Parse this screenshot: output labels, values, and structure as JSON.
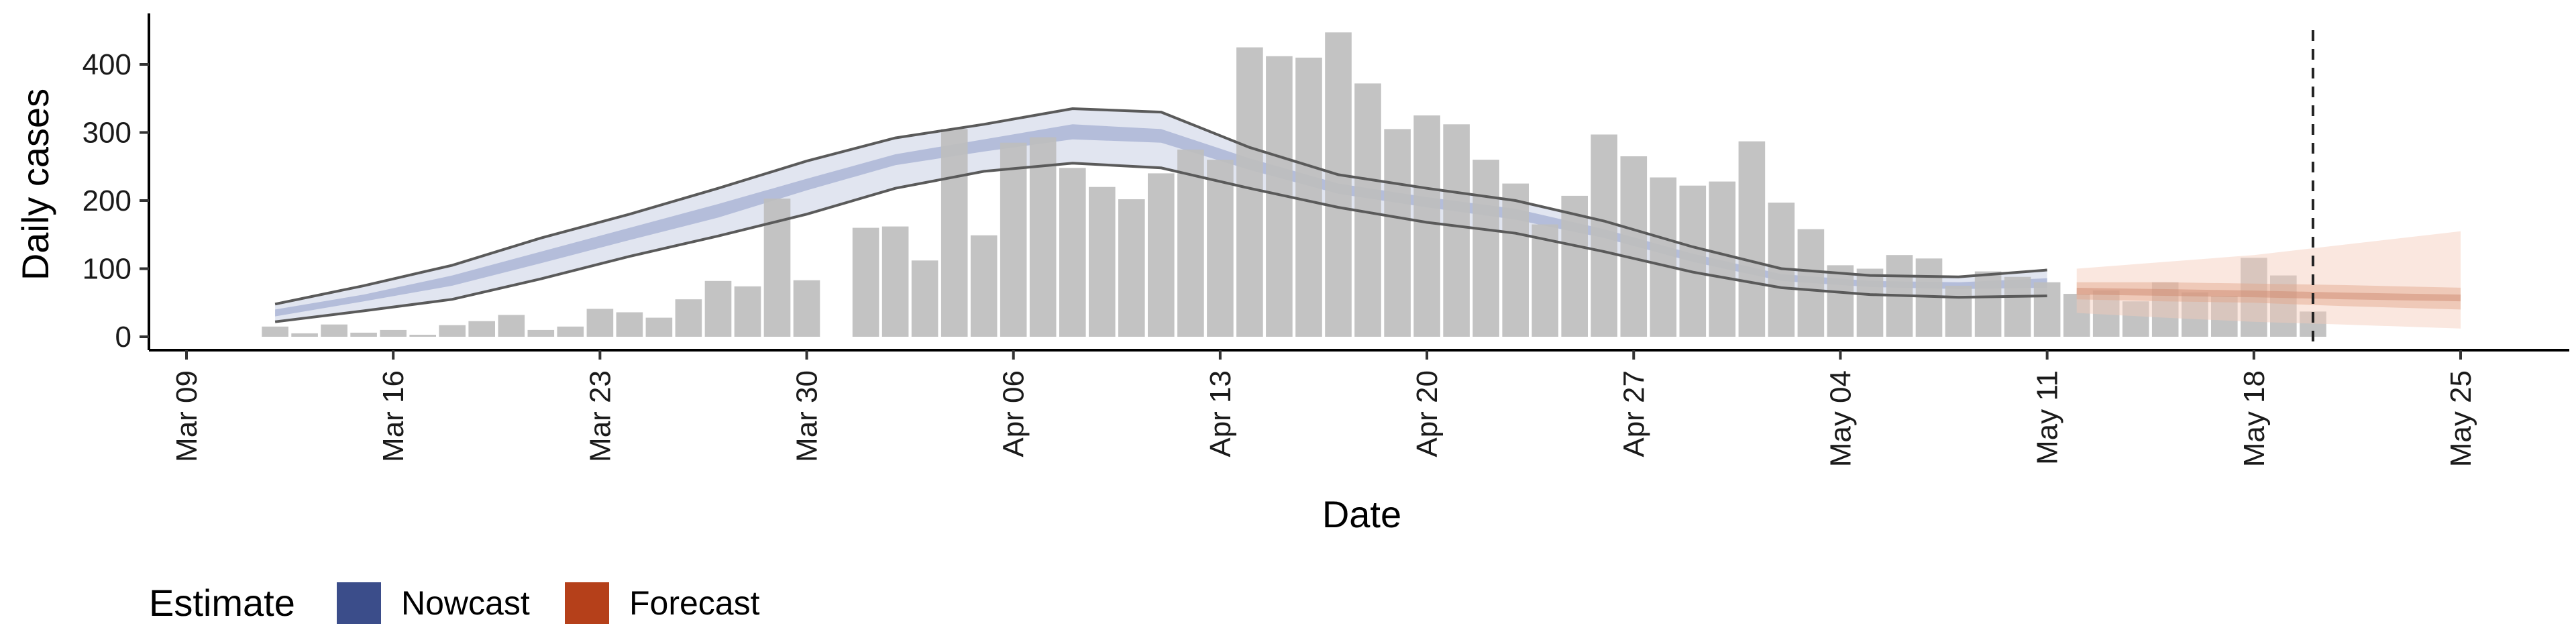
{
  "chart_data": {
    "type": "bar",
    "title": "",
    "xlabel": "Date",
    "ylabel": "Daily cases",
    "ylim": [
      0,
      450
    ],
    "y_ticks": [
      0,
      100,
      200,
      300,
      400
    ],
    "x_range": [
      "2020-03-09",
      "2020-05-25"
    ],
    "x_ticks": [
      {
        "date": "2020-03-09",
        "label": "Mar 09"
      },
      {
        "date": "2020-03-16",
        "label": "Mar 16"
      },
      {
        "date": "2020-03-23",
        "label": "Mar 23"
      },
      {
        "date": "2020-03-30",
        "label": "Mar 30"
      },
      {
        "date": "2020-04-06",
        "label": "Apr 06"
      },
      {
        "date": "2020-04-13",
        "label": "Apr 13"
      },
      {
        "date": "2020-04-20",
        "label": "Apr 20"
      },
      {
        "date": "2020-04-27",
        "label": "Apr 27"
      },
      {
        "date": "2020-05-04",
        "label": "May 04"
      },
      {
        "date": "2020-05-11",
        "label": "May 11"
      },
      {
        "date": "2020-05-18",
        "label": "May 18"
      },
      {
        "date": "2020-05-25",
        "label": "May 25"
      }
    ],
    "grid": false,
    "cases": {
      "start_date": "2020-03-12",
      "color": "#bebebe",
      "values": [
        15,
        5,
        18,
        6,
        10,
        3,
        17,
        23,
        32,
        10,
        15,
        41,
        36,
        28,
        55,
        82,
        74,
        203,
        83,
        0,
        160,
        162,
        112,
        305,
        149,
        285,
        293,
        248,
        220,
        202,
        240,
        275,
        260,
        425,
        412,
        410,
        447,
        372,
        305,
        325,
        312,
        260,
        225,
        165,
        207,
        297,
        265,
        234,
        222,
        228,
        287,
        197,
        158,
        105,
        100,
        120,
        115,
        75,
        96,
        88,
        80,
        63,
        68,
        52,
        80,
        65,
        60,
        116,
        90,
        37
      ]
    },
    "nowcast": {
      "name": "Nowcast",
      "color": "#3b4d8a",
      "x": [
        "2020-03-12",
        "2020-03-15",
        "2020-03-18",
        "2020-03-21",
        "2020-03-24",
        "2020-03-27",
        "2020-03-30",
        "2020-04-02",
        "2020-04-05",
        "2020-04-08",
        "2020-04-11",
        "2020-04-14",
        "2020-04-17",
        "2020-04-20",
        "2020-04-23",
        "2020-04-26",
        "2020-04-29",
        "2020-05-02",
        "2020-05-05",
        "2020-05-08",
        "2020-05-11"
      ],
      "outer_lower": [
        22,
        38,
        55,
        85,
        118,
        148,
        180,
        218,
        243,
        255,
        248,
        218,
        190,
        168,
        152,
        125,
        95,
        72,
        62,
        58,
        60
      ],
      "outer_upper": [
        48,
        75,
        105,
        145,
        180,
        218,
        258,
        292,
        312,
        335,
        330,
        278,
        238,
        218,
        200,
        170,
        132,
        100,
        90,
        88,
        98
      ],
      "inner_lower": [
        30,
        52,
        75,
        108,
        142,
        175,
        215,
        252,
        272,
        290,
        285,
        245,
        210,
        190,
        172,
        145,
        110,
        82,
        73,
        70,
        72
      ],
      "inner_upper": [
        40,
        62,
        90,
        125,
        160,
        195,
        232,
        268,
        290,
        312,
        305,
        262,
        225,
        205,
        188,
        158,
        122,
        92,
        82,
        80,
        86
      ]
    },
    "forecast": {
      "name": "Forecast",
      "color": "#b5401a",
      "x": [
        "2020-05-12",
        "2020-05-15",
        "2020-05-18",
        "2020-05-21",
        "2020-05-25"
      ],
      "outer_lower": [
        35,
        28,
        22,
        18,
        12
      ],
      "outer_upper": [
        100,
        110,
        120,
        135,
        155
      ],
      "inner_lower": [
        55,
        52,
        50,
        45,
        40
      ],
      "inner_upper": [
        80,
        80,
        78,
        76,
        72
      ],
      "median": [
        67,
        65,
        63,
        60,
        57
      ]
    },
    "vline_date": "2020-05-20",
    "legend": {
      "position": "bottom-left",
      "title": "Estimate",
      "entries": [
        {
          "label": "Nowcast",
          "color": "#3b4d8a"
        },
        {
          "label": "Forecast",
          "color": "#b5401a"
        }
      ]
    }
  }
}
